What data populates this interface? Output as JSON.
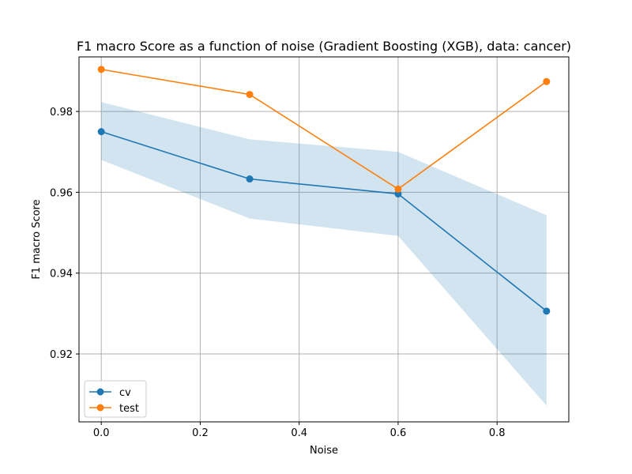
{
  "chart_data": {
    "type": "line",
    "title": "F1 macro Score as a function of noise (Gradient Boosting (XGB), data: cancer)",
    "xlabel": "Noise",
    "ylabel": "F1 macro Score",
    "xlim": [
      -0.045,
      0.945
    ],
    "ylim": [
      0.9032,
      0.9935
    ],
    "xticks": [
      0.0,
      0.2,
      0.4,
      0.6,
      0.8
    ],
    "xtick_labels": [
      "0.0",
      "0.2",
      "0.4",
      "0.6",
      "0.8"
    ],
    "yticks": [
      0.92,
      0.94,
      0.96,
      0.98
    ],
    "ytick_labels": [
      "0.92",
      "0.94",
      "0.96",
      "0.98"
    ],
    "grid": true,
    "legend_position": "lower-left",
    "x": [
      0.0,
      0.3,
      0.6,
      0.9
    ],
    "series": [
      {
        "name": "cv",
        "color": "#1f77b4",
        "values": [
          0.975,
          0.9633,
          0.9596,
          0.9306
        ],
        "band_lower": [
          0.968,
          0.9535,
          0.9492,
          0.9072
        ],
        "band_upper": [
          0.9823,
          0.9731,
          0.97,
          0.9543
        ],
        "band_color": "#1f77b4"
      },
      {
        "name": "test",
        "color": "#ff7f0e",
        "values": [
          0.9904,
          0.9842,
          0.9608,
          0.9874
        ]
      }
    ]
  }
}
